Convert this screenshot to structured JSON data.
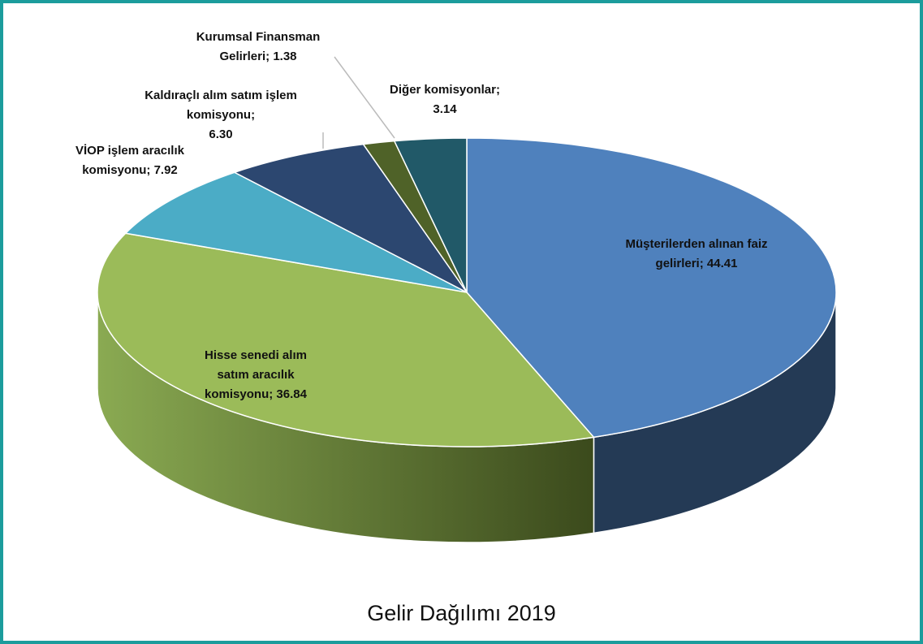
{
  "chart_data": {
    "type": "pie3d",
    "title": "Gelir Dağılımı 2019",
    "categories": [
      "Müşterilerden alınan faiz gelirleri",
      "Hisse senedi alım satım aracılık komisyonu",
      "VİOP işlem aracılık komisyonu",
      "Kaldıraçlı alım satım işlem komisyonu",
      "Kurumsal Finansman Gelirleri",
      "Diğer komisyonlar"
    ],
    "values": [
      44.41,
      36.84,
      7.92,
      6.3,
      1.38,
      3.14
    ],
    "value_labels": [
      "44.41",
      "36.84",
      "7.92",
      "6.30",
      "1.38",
      "3.14"
    ],
    "label_separator": ";",
    "colors": [
      "#4f81bd",
      "#9bbb59",
      "#4bacc6",
      "#2c4770",
      "#4f6228",
      "#215968"
    ]
  }
}
